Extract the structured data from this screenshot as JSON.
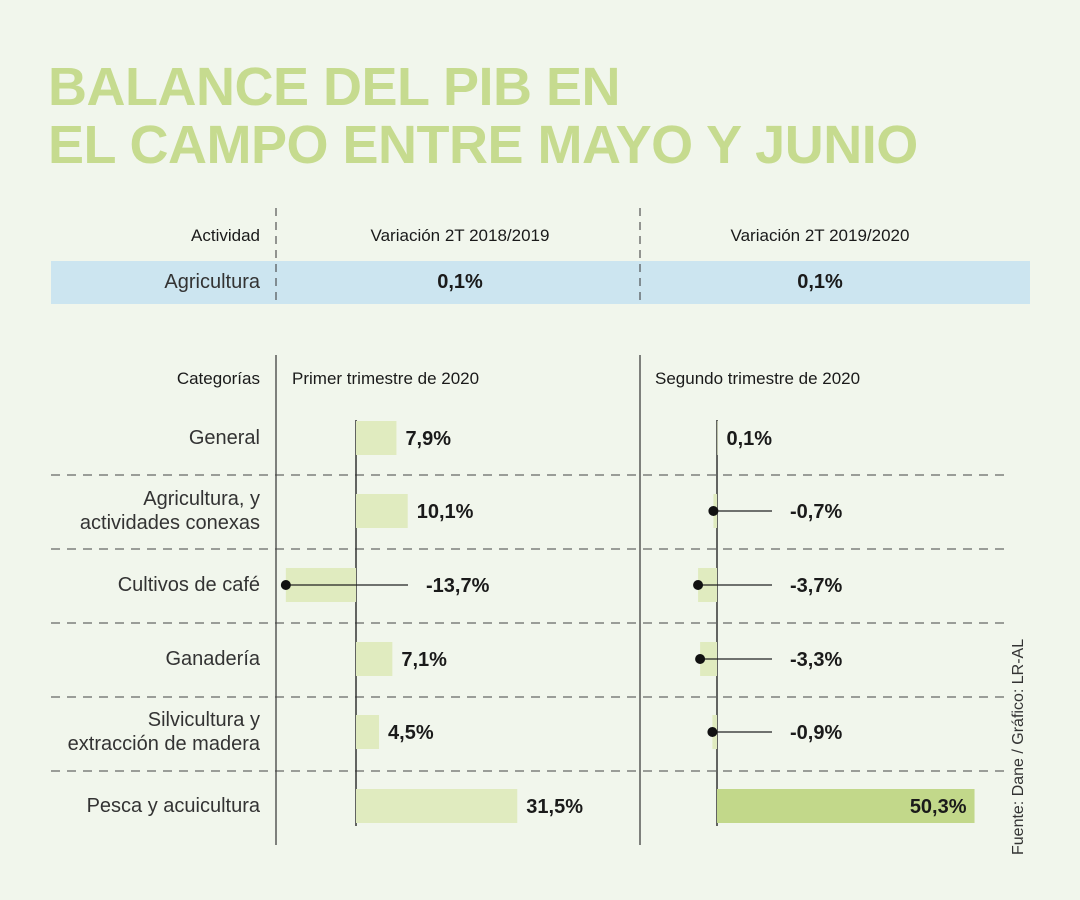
{
  "title": {
    "line1": "BALANCE DEL PIB EN",
    "line2": "EL CAMPO ENTRE MAYO Y JUNIO"
  },
  "top_table": {
    "headers": [
      "Actividad",
      "Variación 2T 2018/2019",
      "Variación 2T 2019/2020"
    ],
    "row": {
      "label": "Agricultura",
      "v1": "0,1%",
      "v2": "0,1%"
    }
  },
  "chart_data": {
    "type": "bar",
    "orientation": "horizontal",
    "title": "BALANCE DEL PIB EN EL CAMPO ENTRE MAYO Y JUNIO",
    "category_header": "Categorías",
    "categories": [
      "General",
      "Agricultura, y actividades conexas",
      "Cultivos de café",
      "Ganadería",
      "Silvicultura y extracción de madera",
      "Pesca y acuicultura"
    ],
    "category_lines": [
      [
        "General"
      ],
      [
        "Agricultura, y",
        "actividades conexas"
      ],
      [
        "Cultivos de café"
      ],
      [
        "Ganadería"
      ],
      [
        "Silvicultura y",
        "extracción de madera"
      ],
      [
        "Pesca y acuicultura"
      ]
    ],
    "series": [
      {
        "name": "Primer trimestre de 2020",
        "values": [
          7.9,
          10.1,
          -13.7,
          7.1,
          4.5,
          31.5
        ],
        "labels": [
          "7,9%",
          "10,1%",
          "-13,7%",
          "7,1%",
          "4,5%",
          "31,5%"
        ]
      },
      {
        "name": "Segundo trimestre de 2020",
        "values": [
          0.1,
          -0.7,
          -3.7,
          -3.3,
          -0.9,
          50.3
        ],
        "labels": [
          "0,1%",
          "-0,7%",
          "-3,7%",
          "-3,3%",
          "-0,9%",
          "50,3%"
        ]
      }
    ],
    "units": "%"
  },
  "colors": {
    "title": "#c6db8f",
    "bar_light": "#e0ebbf",
    "bar_dark": "#c2d88a",
    "blue_row": "#cce5f0",
    "background": "#f1f6ec"
  },
  "source": "Fuente: Dane / Gráfico: LR-AL"
}
